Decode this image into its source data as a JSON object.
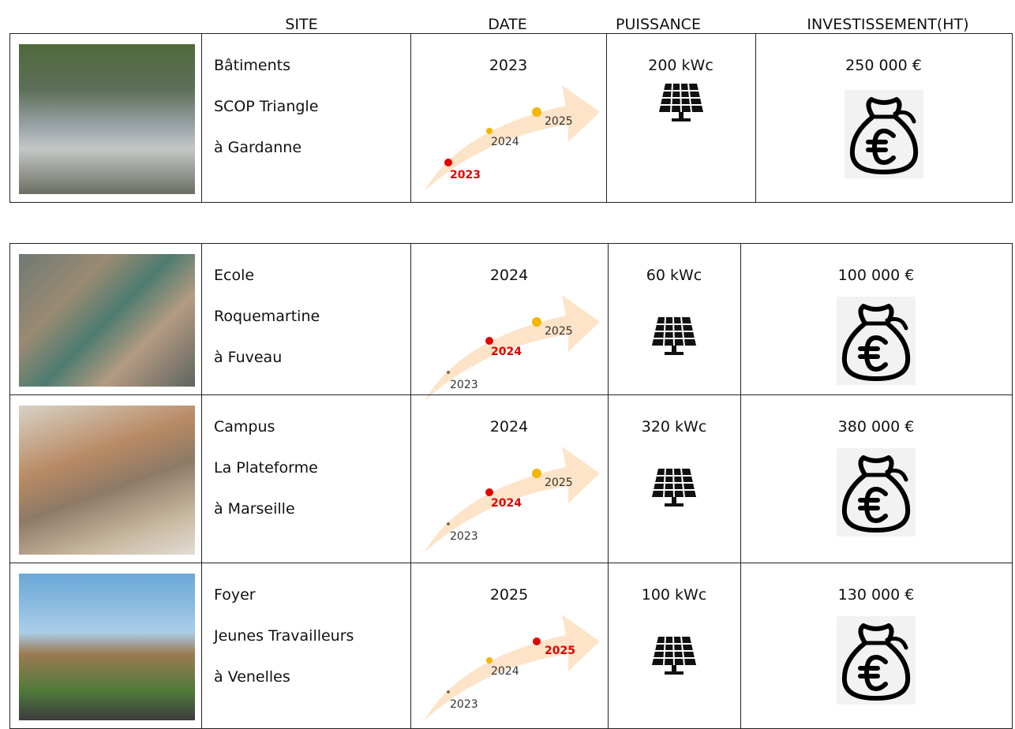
{
  "header": {
    "columns": [
      "SITE",
      "DATE",
      "PUISSANCE",
      "INVESTISSEMENT(HT)"
    ]
  },
  "projects": [
    {
      "site": [
        "Bâtiments",
        "SCOP Triangle",
        "à Gardanne"
      ],
      "date": "2023",
      "timeline": [
        "2023",
        "2024",
        "2025"
      ],
      "power": "200 kWc",
      "investment": "250 000 €"
    },
    {
      "site": [
        "Ecole",
        "Roquemartine",
        "à Fuveau"
      ],
      "date": "2024",
      "timeline": [
        "2023",
        "2024",
        "2025"
      ],
      "power": "60 kWc",
      "investment": "100 000 €"
    },
    {
      "site": [
        "Campus",
        "La Plateforme",
        "à Marseille"
      ],
      "date": "2024",
      "timeline": [
        "2023",
        "2024",
        "2025"
      ],
      "power": "320 kWc",
      "investment": "380 000 €"
    },
    {
      "site": [
        "Foyer",
        "Jeunes Travailleurs",
        "à Venelles"
      ],
      "date": "2025",
      "timeline": [
        "2023",
        "2024",
        "2025"
      ],
      "power": "100 kWc",
      "investment": "130 000 €"
    }
  ]
}
